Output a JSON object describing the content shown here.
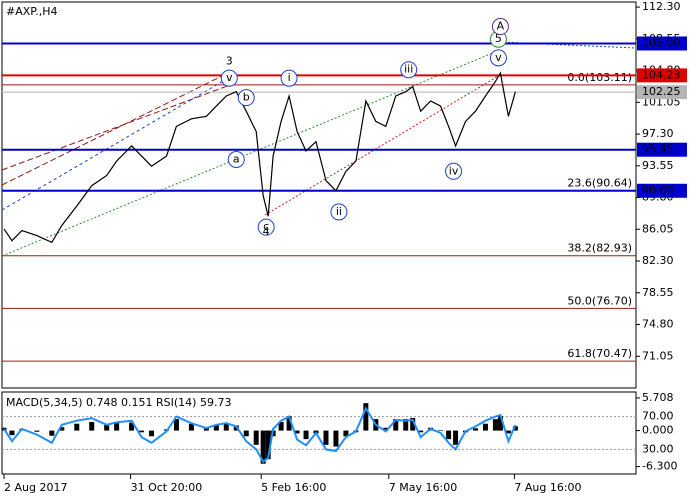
{
  "chart_data": [
    {
      "type": "line",
      "title": "#AXP.,H4",
      "color": "#000000",
      "x": [
        2,
        10,
        20,
        35,
        50,
        60,
        75,
        90,
        105,
        115,
        130,
        140,
        150,
        165,
        175,
        190,
        205,
        215,
        225,
        235,
        245,
        255,
        262,
        267,
        272,
        280,
        288,
        296,
        305,
        315,
        325,
        335,
        345,
        355,
        365,
        375,
        385,
        395,
        405,
        412,
        420,
        430,
        440,
        448,
        455,
        465,
        475,
        485,
        495,
        500,
        508,
        515
      ],
      "values": [
        86.1,
        84.7,
        85.9,
        85.3,
        84.5,
        86.5,
        88.8,
        91.2,
        92.4,
        94.1,
        95.9,
        94.7,
        93.5,
        94.7,
        98.2,
        99.1,
        99.4,
        100.6,
        101.8,
        102.3,
        100.0,
        97.6,
        90.0,
        87.6,
        94.7,
        98.8,
        101.8,
        97.6,
        95.3,
        96.4,
        91.8,
        90.6,
        92.9,
        94.1,
        101.2,
        98.8,
        98.2,
        101.8,
        102.3,
        102.9,
        100.0,
        101.2,
        100.6,
        98.2,
        95.9,
        98.8,
        100.0,
        101.8,
        103.5,
        104.5,
        99.4,
        102.3
      ],
      "xlim": [
        0,
        636
      ],
      "xticks": [
        {
          "value": 2,
          "label": "2 Aug 2017"
        },
        {
          "value": 129,
          "label": "31 Oct 20:00"
        },
        {
          "value": 260,
          "label": "5 Feb 16:00"
        },
        {
          "value": 388,
          "label": "7 May 16:00"
        },
        {
          "value": 514,
          "label": "7 Aug 16:00"
        }
      ],
      "ylim": [
        67.3,
        112.9
      ],
      "yticks": [
        71.05,
        {
          "value": 74.8,
          "label": "74.80"
        },
        78.55,
        {
          "value": 82.3,
          "label": "82.30"
        },
        86.05,
        {
          "value": 89.8,
          "label": "89.80"
        },
        93.55,
        {
          "value": 97.3,
          "label": "97.30"
        },
        101.05,
        {
          "value": 104.8,
          "label": "104.80"
        },
        108.55,
        {
          "value": 112.3,
          "label": "112.30"
        }
      ],
      "levels": [
        {
          "value": 108,
          "label": "108.00",
          "color": "#0000cc"
        },
        {
          "value": 104.23,
          "label": "104.23",
          "color": "#dd0000"
        },
        {
          "value": 102.25,
          "label": "102.25",
          "color": "#b4b4b4"
        },
        {
          "value": 95.45,
          "label": "95.45",
          "color": "#0000cc"
        },
        {
          "value": 90.6,
          "label": "90.60",
          "color": "#0000cc"
        }
      ],
      "fib_levels": [
        {
          "value": 103.11,
          "label": "0.0(103.11)"
        },
        {
          "value": 90.64,
          "label": "23.6(90.64)"
        },
        {
          "value": 82.93,
          "label": "38.2(82.93)"
        },
        {
          "value": 76.7,
          "label": "50.0(76.70)"
        },
        {
          "value": 70.47,
          "label": "61.8(70.47)"
        }
      ],
      "fib_color": "#a01818",
      "wave_labels": [
        {
          "text": "3",
          "x": 228,
          "y": 105.9,
          "color": "#c0392b",
          "circled": false
        },
        {
          "text": "v",
          "x": 228,
          "y": 103.9,
          "color": "#1f3fd0",
          "circled": true
        },
        {
          "text": "b",
          "x": 245,
          "y": 101.6,
          "color": "#1f3fd0",
          "circled": true
        },
        {
          "text": "a",
          "x": 235,
          "y": 94.3,
          "color": "#1f3fd0",
          "circled": true
        },
        {
          "text": "c",
          "x": 265,
          "y": 86.3,
          "color": "#1f3fd0",
          "circled": true
        },
        {
          "text": "4",
          "x": 265,
          "y": 85.7,
          "color": "#c0392b",
          "circled": false
        },
        {
          "text": "i",
          "x": 288,
          "y": 103.9,
          "color": "#1f3fd0",
          "circled": true
        },
        {
          "text": "ii",
          "x": 338,
          "y": 88.1,
          "color": "#1f3fd0",
          "circled": true
        },
        {
          "text": "iii",
          "x": 408,
          "y": 104.9,
          "color": "#1f3fd0",
          "circled": true
        },
        {
          "text": "iv",
          "x": 453,
          "y": 92.9,
          "color": "#1f3fd0",
          "circled": true
        },
        {
          "text": "v",
          "x": 498,
          "y": 106.3,
          "color": "#1f3fd0",
          "circled": true
        },
        {
          "text": "5",
          "x": 498,
          "y": 108.5,
          "color": "#2e8b2e",
          "circled": true
        },
        {
          "text": "A",
          "x": 500,
          "y": 110.0,
          "color": "#5a2a8a",
          "circled": true
        }
      ]
    },
    {
      "type": "macd",
      "title": "MACD(5,34,5) 0.748 0.151 RSI(14) 59.73",
      "x": [
        2,
        10,
        20,
        35,
        50,
        60,
        75,
        90,
        105,
        115,
        130,
        140,
        150,
        165,
        175,
        190,
        205,
        215,
        225,
        235,
        245,
        255,
        262,
        267,
        272,
        280,
        288,
        296,
        305,
        315,
        325,
        335,
        345,
        355,
        365,
        375,
        385,
        395,
        405,
        412,
        420,
        430,
        440,
        448,
        455,
        465,
        475,
        485,
        495,
        500,
        508,
        515
      ],
      "xlim": [
        0,
        636
      ],
      "ylim": [
        -7.6,
        6.75
      ],
      "yticks": [
        5.708,
        {
          "value": 0,
          "label": "0.000"
        },
        {
          "value": -6.3,
          "label": "-6.300"
        }
      ],
      "y2lim": [
        0,
        100
      ],
      "y2ticks": [
        {
          "value": 70,
          "label": "70.00"
        },
        {
          "value": 30,
          "label": "30.00"
        }
      ],
      "series": [
        {
          "name": "MACD",
          "color": "#000000",
          "values": [
            0.5,
            -0.8,
            0.3,
            -0.2,
            -0.9,
            0.6,
            1.2,
            1.5,
            1.0,
            1.3,
            1.4,
            -0.3,
            -1.0,
            0.2,
            2.0,
            1.2,
            0.6,
            1.0,
            1.2,
            0.9,
            -1.0,
            -2.5,
            -5.8,
            -5.0,
            -1.0,
            1.5,
            2.5,
            -0.5,
            -1.5,
            -0.5,
            -2.5,
            -2.8,
            -1.0,
            -0.3,
            4.8,
            2.0,
            0.5,
            2.0,
            2.0,
            2.2,
            -0.3,
            0.5,
            0.1,
            -1.5,
            -2.5,
            -0.3,
            0.4,
            1.2,
            2.0,
            2.5,
            -0.5,
            0.75
          ]
        },
        {
          "name": "RSI(14)",
          "color": "#1e90ff",
          "axis": "y2",
          "values": [
            55,
            40,
            55,
            48,
            38,
            60,
            65,
            68,
            60,
            63,
            65,
            45,
            38,
            52,
            70,
            62,
            56,
            60,
            62,
            58,
            40,
            30,
            15,
            20,
            55,
            65,
            70,
            42,
            35,
            50,
            30,
            28,
            45,
            52,
            80,
            60,
            52,
            66,
            65,
            66,
            45,
            55,
            50,
            38,
            30,
            52,
            58,
            65,
            70,
            72,
            40,
            59.73
          ]
        }
      ]
    }
  ]
}
